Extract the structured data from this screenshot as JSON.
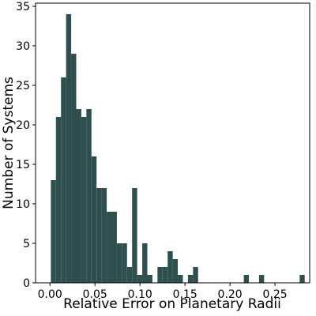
{
  "chart_data": {
    "type": "histogram",
    "x_label": "Relative Error on Planetary Radii",
    "y_label": "Number of Systems",
    "color": "#2f4f4f",
    "bins": [
      0.001,
      0.00664,
      0.01228,
      0.01792,
      0.02356,
      0.0292,
      0.03484,
      0.04048,
      0.04612,
      0.05176,
      0.0574,
      0.06304,
      0.06868,
      0.07432,
      0.07996,
      0.0856,
      0.09124,
      0.09688,
      0.10252,
      0.10816,
      0.1138,
      0.11944,
      0.12508,
      0.13072,
      0.13636,
      0.142,
      0.14764,
      0.15328,
      0.15892,
      0.16456,
      0.1702,
      0.17584,
      0.18148,
      0.18712,
      0.19276,
      0.1984,
      0.20404,
      0.20968,
      0.21532,
      0.22096,
      0.2266,
      0.23224,
      0.23788,
      0.24352,
      0.24916,
      0.2548,
      0.26044,
      0.26608,
      0.27172,
      0.27736,
      0.283
    ],
    "values": [
      13,
      21,
      26,
      34,
      29,
      22,
      21,
      22,
      16,
      12,
      12,
      9,
      9,
      5,
      5,
      2,
      12,
      1,
      5,
      1,
      0,
      2,
      2,
      4,
      3,
      1,
      0,
      1,
      2,
      0,
      0,
      0,
      0,
      0,
      0,
      0,
      0,
      0,
      1,
      0,
      0,
      1,
      0,
      0,
      0,
      0,
      0,
      0,
      0,
      1
    ],
    "xlim": [
      -0.016,
      0.2885
    ],
    "ylim": [
      0,
      35.4
    ],
    "xticks": [
      {
        "value": 0,
        "label": "0.00"
      },
      0.05,
      {
        "value": 0.1,
        "label": "0.10"
      },
      0.15,
      {
        "value": 0.2,
        "label": "0.20"
      },
      0.25
    ],
    "yticks": [
      0,
      5,
      10,
      15,
      20,
      25,
      30,
      35
    ]
  }
}
